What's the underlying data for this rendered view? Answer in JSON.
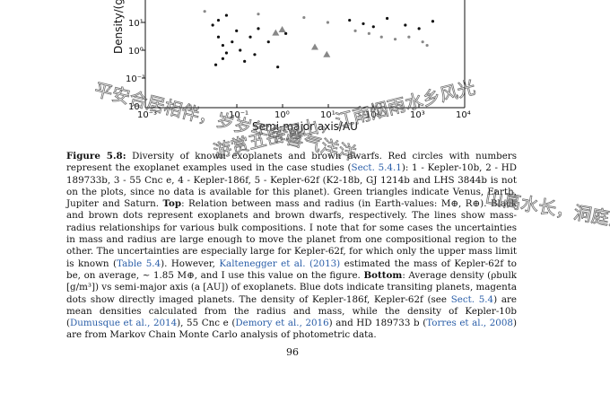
{
  "figure": {
    "y_axis_label": "Density/(g",
    "x_axis_label": "Semi-major axis/AU",
    "y_ticks": [
      "10¹",
      "10⁰",
      "10⁻¹",
      "10"
    ],
    "x_ticks": [
      "10⁻³",
      "10⁻¹",
      "10⁰",
      "10¹",
      "10²",
      "10³",
      "10⁴"
    ]
  },
  "chart_data": {
    "type": "scatter",
    "xlabel": "Semi-major axis/AU",
    "ylabel": "Density/(g",
    "x_scale": "log",
    "y_scale": "log",
    "xlim": [
      0.001,
      10000
    ],
    "x_ticks": [
      "10⁻³",
      "10⁻¹",
      "10⁰",
      "10¹",
      "10²",
      "10³",
      "10⁴"
    ],
    "series": [
      {
        "marker": "dot",
        "color": "#111111",
        "points": [
          [
            0.03,
            8
          ],
          [
            0.04,
            3
          ],
          [
            0.05,
            1.5
          ],
          [
            0.06,
            0.8
          ],
          [
            0.05,
            0.5
          ],
          [
            0.08,
            2
          ],
          [
            0.1,
            5
          ],
          [
            0.12,
            1
          ],
          [
            0.15,
            0.4
          ],
          [
            0.2,
            3
          ],
          [
            0.25,
            0.7
          ],
          [
            0.3,
            6
          ],
          [
            0.04,
            12
          ],
          [
            0.06,
            18
          ],
          [
            0.035,
            0.3
          ],
          [
            0.5,
            2
          ],
          [
            0.8,
            0.25
          ],
          [
            1.2,
            4
          ],
          [
            30,
            12
          ],
          [
            60,
            9
          ],
          [
            100,
            7
          ],
          [
            200,
            14
          ],
          [
            500,
            8
          ],
          [
            1000,
            6
          ],
          [
            2000,
            11
          ]
        ]
      },
      {
        "marker": "dot",
        "color": "#888888",
        "points": [
          [
            0.02,
            25
          ],
          [
            0.3,
            20
          ],
          [
            3,
            15
          ],
          [
            10,
            10
          ],
          [
            40,
            5
          ],
          [
            80,
            4
          ],
          [
            150,
            3
          ],
          [
            300,
            2.5
          ],
          [
            600,
            3
          ],
          [
            1200,
            2
          ],
          [
            1500,
            1.5
          ]
        ]
      },
      {
        "marker": "triangle",
        "color": "#888888",
        "points": [
          [
            0.72,
            4.2
          ],
          [
            1,
            5.5
          ],
          [
            5.2,
            1.3
          ],
          [
            9.5,
            0.7
          ]
        ]
      }
    ]
  },
  "caption": {
    "label": "Figure 5.8:",
    "t1": " Diversity of known exoplanets and brown dwarfs. Red circles with numbers represent the exoplanet examples used in the case studies (",
    "c1": "Sect. 5.4.1",
    "t2": "): 1 - Kepler-10b, 2 - HD 189733b, 3 - 55 Cnc e, 4 - Kepler-186f, 5 - Kepler-62f (K2-18b, GJ 1214b and LHS 3844b is not on the plots, since no data is available for this planet). Green triangles indicate Venus, Earth, Jupiter and Saturn. ",
    "b1": "Top",
    "t3": ": Relation between mass and radius (in Earth-values: M⊕, R⊕). Black and brown dots represent exoplanets and brown dwarfs, respectively. The lines show mass-radius relationships for various bulk compositions. I note that for some cases the uncertainties in mass and radius are large enough to move the planet from one compositional region to the other. The uncertainties are especially large for Kepler-62f, for which only the upper mass limit is known (",
    "c2": "Table 5.4",
    "t4": "). However, ",
    "c3": "Kaltenegger et al. (2013)",
    "t5": " estimated the mass of Kepler-62f to be, on average, ~ 1.85 M⊕, and I use this value on the figure. ",
    "b2": "Bottom",
    "t6": ": Average density (ρbulk [g/m³]) vs semi-major axis (a [AU]) of exoplanets. Blue dots indicate transiting planets, magenta dots show directly imaged planets. The density of Kepler-186f, Kepler-62f (see ",
    "c4": "Sect. 5.4",
    "t7": ") are mean densities calculated from the radius and mass, while the density of Kepler-10b (",
    "c5": "Dumusque et al., 2014",
    "t8": "), 55 Cnc e (",
    "c6": "Demory et al., 2016",
    "t9": ") and HD 189733 b (",
    "c7": "Torres et al., 2008",
    "t10": ") are from Markov Chain Monte Carlo analysis of photometric data."
  },
  "page_number": "96",
  "watermark": {
    "line1": "平安合居相伴，岁岁年年喜气洋洋",
    "line2": "游赏五岳河山，江南烟雨水乡风光",
    "line3": "山高水长，洞庭湖"
  }
}
